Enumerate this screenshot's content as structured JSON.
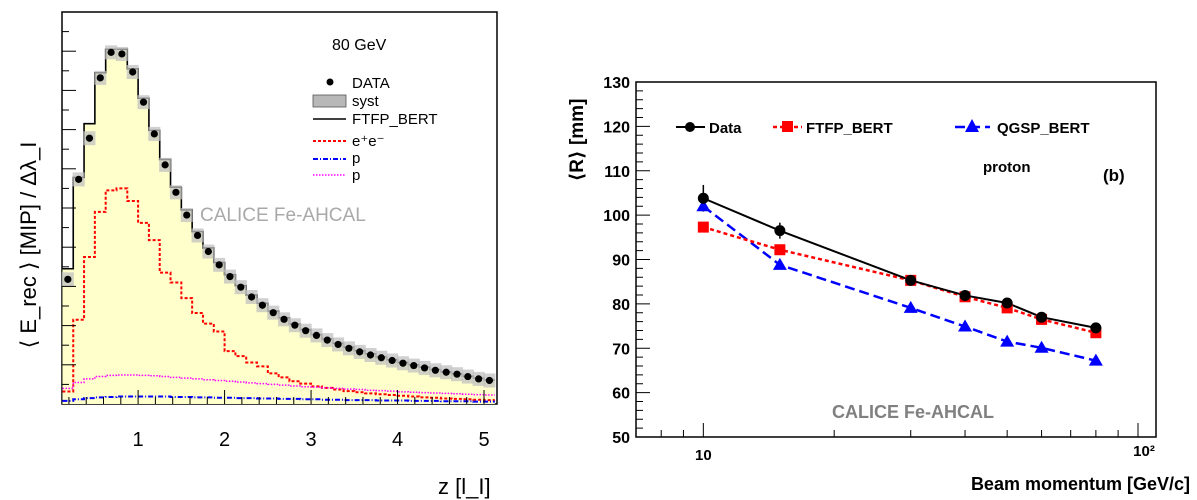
{
  "chart_data": [
    {
      "type": "line",
      "energy_label": "80 GeV",
      "xlabel": "z [l_I]",
      "ylabel": "⟨ E_rec ⟩ [MIP] / Δλ_I",
      "watermark": "CALICE Fe-AHCAL",
      "xlim": [
        0.12,
        5.15
      ],
      "ylim": [
        0,
        1.0
      ],
      "xticks": [
        "1",
        "2",
        "3",
        "4",
        "5"
      ],
      "legend": [
        "DATA",
        "syst",
        "FTFP_BERT",
        "e⁺e⁻",
        "p",
        "p"
      ],
      "legend_position": "top-right",
      "bin_width": 0.125,
      "x_start": 0.125,
      "series": [
        {
          "name": "DATA",
          "values": [
            0.318,
            0.573,
            0.678,
            0.832,
            0.897,
            0.893,
            0.847,
            0.77,
            0.689,
            0.61,
            0.54,
            0.482,
            0.43,
            0.389,
            0.355,
            0.325,
            0.298,
            0.273,
            0.252,
            0.233,
            0.216,
            0.201,
            0.187,
            0.175,
            0.163,
            0.152,
            0.142,
            0.133,
            0.125,
            0.118,
            0.111,
            0.104,
            0.098,
            0.092,
            0.086,
            0.081,
            0.076,
            0.07,
            0.064,
            0.06
          ]
        },
        {
          "name": "FTFP_BERT",
          "values": [
            0.345,
            0.578,
            0.715,
            0.845,
            0.905,
            0.905,
            0.855,
            0.78,
            0.698,
            0.624,
            0.553,
            0.495,
            0.44,
            0.398,
            0.361,
            0.33,
            0.302,
            0.278,
            0.257,
            0.237,
            0.22,
            0.204,
            0.19,
            0.177,
            0.166,
            0.155,
            0.145,
            0.136,
            0.128,
            0.12,
            0.113,
            0.106,
            0.1,
            0.094,
            0.088,
            0.082,
            0.077,
            0.071,
            0.066,
            0.061
          ]
        },
        {
          "name": "e⁺e⁻",
          "values": [
            0.032,
            0.215,
            0.375,
            0.49,
            0.545,
            0.55,
            0.518,
            0.462,
            0.418,
            0.335,
            0.31,
            0.27,
            0.232,
            0.205,
            0.185,
            0.135,
            0.122,
            0.106,
            0.096,
            0.078,
            0.068,
            0.058,
            0.052,
            0.045,
            0.041,
            0.037,
            0.033,
            0.03,
            0.027,
            0.025,
            0.023,
            0.021,
            0.019,
            0.017,
            0.016,
            0.014,
            0.013,
            0.012,
            0.011,
            0.01
          ]
        },
        {
          "name": "p",
          "values": [
            0.008,
            0.012,
            0.015,
            0.017,
            0.018,
            0.019,
            0.019,
            0.019,
            0.019,
            0.019,
            0.018,
            0.018,
            0.017,
            0.017,
            0.016,
            0.016,
            0.015,
            0.015,
            0.014,
            0.014,
            0.013,
            0.013,
            0.012,
            0.012,
            0.011,
            0.011,
            0.01,
            0.01,
            0.01,
            0.009,
            0.009,
            0.009,
            0.008,
            0.008,
            0.008,
            0.007,
            0.007,
            0.007,
            0.006,
            0.006
          ]
        },
        {
          "name": "p",
          "values": [
            0.04,
            0.055,
            0.064,
            0.07,
            0.073,
            0.074,
            0.074,
            0.073,
            0.072,
            0.07,
            0.068,
            0.066,
            0.064,
            0.062,
            0.06,
            0.058,
            0.056,
            0.054,
            0.052,
            0.05,
            0.048,
            0.046,
            0.044,
            0.043,
            0.041,
            0.04,
            0.038,
            0.037,
            0.035,
            0.034,
            0.033,
            0.031,
            0.03,
            0.029,
            0.028,
            0.027,
            0.026,
            0.025,
            0.024,
            0.023
          ]
        }
      ]
    },
    {
      "type": "line",
      "xlabel": "Beam momentum [GeV/c]",
      "ylabel": "⟨R⟩ [mm]",
      "panel_label": "(b)",
      "particle": "proton",
      "watermark": "CALICE Fe-AHCAL",
      "x_scale": "log",
      "xlim": [
        7,
        110
      ],
      "ylim": [
        50,
        130
      ],
      "xticks": [
        "10",
        "10²"
      ],
      "yticks": [
        "50",
        "60",
        "70",
        "80",
        "90",
        "100",
        "110",
        "120",
        "130"
      ],
      "legend_position": "top",
      "series": [
        {
          "name": "Data",
          "color": "#000000",
          "x": [
            10,
            15,
            30,
            40,
            50,
            60,
            80
          ],
          "y": [
            103.8,
            96.5,
            85.3,
            81.9,
            80.2,
            77.0,
            74.6
          ],
          "yerr": [
            3.0,
            1.8,
            0.8,
            0.8,
            1.0,
            0.9,
            0.9
          ]
        },
        {
          "name": "FTFP_BERT",
          "color": "#ff0000",
          "x": [
            10,
            15,
            30,
            40,
            50,
            60,
            80
          ],
          "y": [
            97.3,
            92.2,
            85.3,
            81.6,
            79.1,
            76.5,
            73.5
          ]
        },
        {
          "name": "QGSP_BERT",
          "color": "#0000ff",
          "x": [
            10,
            15,
            30,
            40,
            50,
            60,
            80
          ],
          "y": [
            102.0,
            88.8,
            79.1,
            74.9,
            71.5,
            70.1,
            67.2
          ]
        }
      ]
    }
  ]
}
